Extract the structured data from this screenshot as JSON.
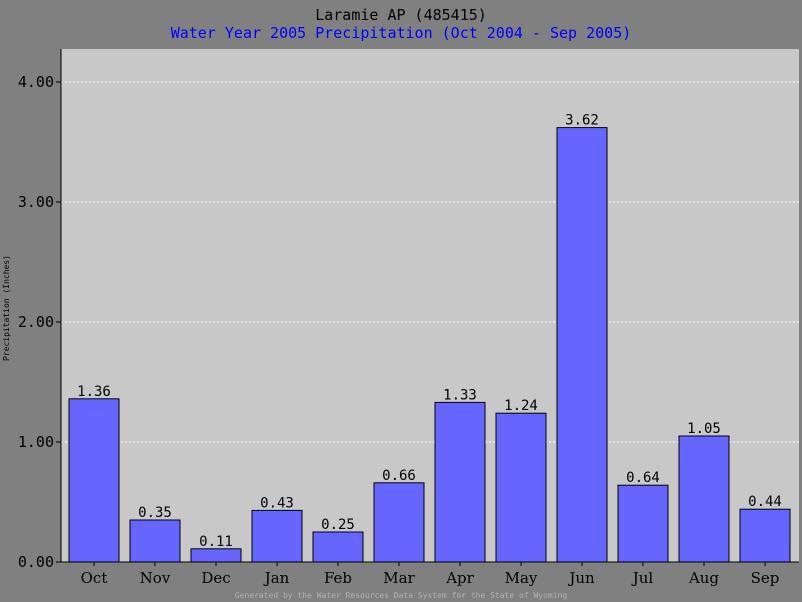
{
  "chart_data": {
    "type": "bar",
    "title": "Laramie AP (485415)",
    "subtitle": "Water Year 2005 Precipitation (Oct 2004 - Sep 2005)",
    "ylabel": "Precipitation (Inches)",
    "xlabel": "",
    "categories": [
      "Oct",
      "Nov",
      "Dec",
      "Jan",
      "Feb",
      "Mar",
      "Apr",
      "May",
      "Jun",
      "Jul",
      "Aug",
      "Sep"
    ],
    "values": [
      1.36,
      0.35,
      0.11,
      0.43,
      0.25,
      0.66,
      1.33,
      1.24,
      3.62,
      0.64,
      1.05,
      0.44
    ],
    "value_labels": [
      "1.36",
      "0.35",
      "0.11",
      "0.43",
      "0.25",
      "0.66",
      "1.33",
      "1.24",
      "3.62",
      "0.64",
      "1.05",
      "0.44"
    ],
    "ylim": [
      0,
      4.0
    ],
    "yticks": [
      0,
      1,
      2,
      3,
      4
    ],
    "ytick_labels": [
      "0.00",
      "1.00",
      "2.00",
      "3.00",
      "4.00"
    ],
    "grid": true,
    "colors": {
      "bar": "#6666ff",
      "plot_background": "#c8c8c8",
      "page_background": "#808080",
      "grid": "#ffffff",
      "title": "#000000",
      "subtitle": "#0000ff"
    }
  },
  "footer": "Generated by the Water Resources Data System for the State of Wyoming"
}
